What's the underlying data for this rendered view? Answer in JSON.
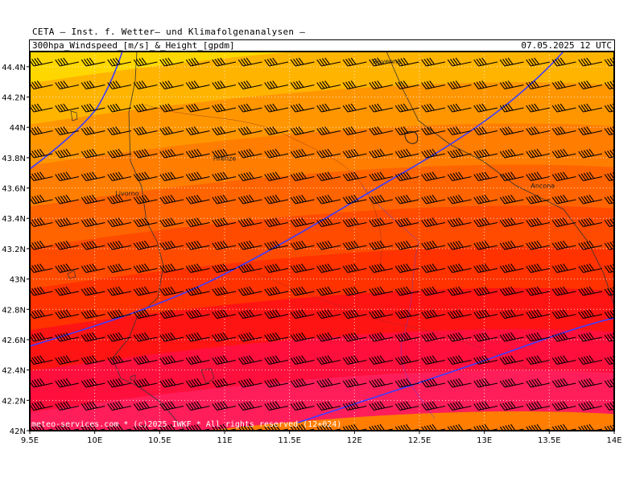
{
  "header": {
    "institute": "CETA — Inst. f. Wetter— und Klimafolgenanalysen —",
    "title": "300hpa_Windspeed_[m/s]_&_Height_[gpdm]",
    "valid_time": "07.05.2025 12 UTC"
  },
  "footer": {
    "credit": "meteo-services.com * (c)2025 IWKF * All rights reserved (12+024)"
  },
  "map": {
    "lon_range": [
      9.5,
      14.0
    ],
    "lat_range": [
      42.0,
      44.5
    ],
    "x_ticks": [
      {
        "value": 9.5,
        "label": "9.5E"
      },
      {
        "value": 10.0,
        "label": "10E"
      },
      {
        "value": 10.5,
        "label": "10.5E"
      },
      {
        "value": 11.0,
        "label": "11E"
      },
      {
        "value": 11.5,
        "label": "11.5E"
      },
      {
        "value": 12.0,
        "label": "12E"
      },
      {
        "value": 12.5,
        "label": "12.5E"
      },
      {
        "value": 13.0,
        "label": "13E"
      },
      {
        "value": 13.5,
        "label": "13.5E"
      },
      {
        "value": 14.0,
        "label": "14E"
      }
    ],
    "y_ticks": [
      {
        "value": 42.0,
        "label": "42N"
      },
      {
        "value": 42.2,
        "label": "42.2N"
      },
      {
        "value": 42.4,
        "label": "42.4N"
      },
      {
        "value": 42.6,
        "label": "42.6N"
      },
      {
        "value": 42.8,
        "label": "42.8N"
      },
      {
        "value": 43.0,
        "label": "43N"
      },
      {
        "value": 43.2,
        "label": "43.2N"
      },
      {
        "value": 43.4,
        "label": "43.4N"
      },
      {
        "value": 43.6,
        "label": "43.6N"
      },
      {
        "value": 43.8,
        "label": "43.8N"
      },
      {
        "value": 44.0,
        "label": "44N"
      },
      {
        "value": 44.2,
        "label": "44.2N"
      },
      {
        "value": 44.4,
        "label": "44.4N"
      }
    ],
    "cities": [
      {
        "name": "Ravenna",
        "lon": 12.25,
        "lat": 44.42
      },
      {
        "name": "Firenze",
        "lon": 11.0,
        "lat": 43.78
      },
      {
        "name": "Livorno",
        "lon": 10.25,
        "lat": 43.55
      },
      {
        "name": "Ancona",
        "lon": 13.45,
        "lat": 43.6
      }
    ],
    "wind_speed_bands_color_top_to_bottom": [
      "#ffd700",
      "#ffb400",
      "#ff9600",
      "#ff7d00",
      "#ff6400",
      "#ff4b00",
      "#ff3200",
      "#ff1414",
      "#ff0f3c",
      "#ff1e5a"
    ],
    "height_contours_color": "#3c3cff",
    "grid_color": "#ffffff",
    "wind_barb_color": "#000000",
    "wind_direction": "from west-southwest"
  }
}
